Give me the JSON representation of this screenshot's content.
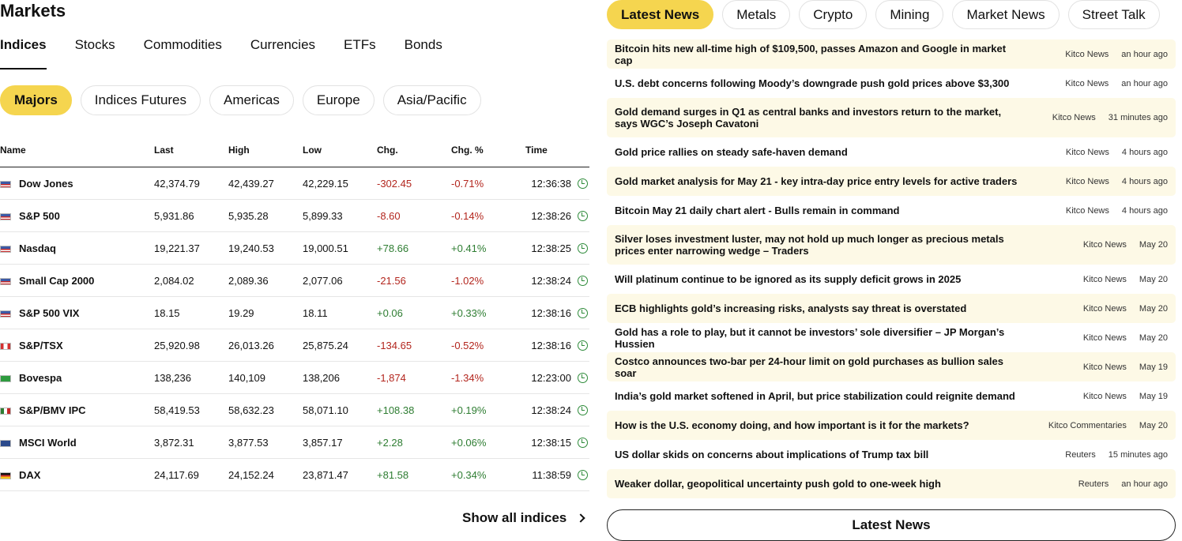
{
  "markets": {
    "title": "Markets",
    "tabs": [
      "Indices",
      "Stocks",
      "Commodities",
      "Currencies",
      "ETFs",
      "Bonds"
    ],
    "subtabs": [
      "Majors",
      "Indices Futures",
      "Americas",
      "Europe",
      "Asia/Pacific"
    ],
    "columns": [
      "Name",
      "Last",
      "High",
      "Low",
      "Chg.",
      "Chg. %",
      "Time"
    ],
    "rows": [
      {
        "flag": "flag-us",
        "name": "Dow Jones",
        "last": "42,374.79",
        "high": "42,439.27",
        "low": "42,229.15",
        "chg": "-302.45",
        "pct": "-0.71%",
        "time": "12:36:38",
        "dir": "neg"
      },
      {
        "flag": "flag-us",
        "name": "S&P 500",
        "last": "5,931.86",
        "high": "5,935.28",
        "low": "5,899.33",
        "chg": "-8.60",
        "pct": "-0.14%",
        "time": "12:38:26",
        "dir": "neg"
      },
      {
        "flag": "flag-us",
        "name": "Nasdaq",
        "last": "19,221.37",
        "high": "19,240.53",
        "low": "19,000.51",
        "chg": "+78.66",
        "pct": "+0.41%",
        "time": "12:38:25",
        "dir": "pos"
      },
      {
        "flag": "flag-us",
        "name": "Small Cap 2000",
        "last": "2,084.02",
        "high": "2,089.36",
        "low": "2,077.06",
        "chg": "-21.56",
        "pct": "-1.02%",
        "time": "12:38:24",
        "dir": "neg"
      },
      {
        "flag": "flag-us",
        "name": "S&P 500 VIX",
        "last": "18.15",
        "high": "19.29",
        "low": "18.11",
        "chg": "+0.06",
        "pct": "+0.33%",
        "time": "12:38:16",
        "dir": "pos"
      },
      {
        "flag": "flag-ca",
        "name": "S&P/TSX",
        "last": "25,920.98",
        "high": "26,013.26",
        "low": "25,875.24",
        "chg": "-134.65",
        "pct": "-0.52%",
        "time": "12:38:16",
        "dir": "neg"
      },
      {
        "flag": "flag-br",
        "name": "Bovespa",
        "last": "138,236",
        "high": "140,109",
        "low": "138,206",
        "chg": "-1,874",
        "pct": "-1.34%",
        "time": "12:23:00",
        "dir": "neg"
      },
      {
        "flag": "flag-mx",
        "name": "S&P/BMV IPC",
        "last": "58,419.53",
        "high": "58,632.23",
        "low": "58,071.10",
        "chg": "+108.38",
        "pct": "+0.19%",
        "time": "12:38:24",
        "dir": "pos"
      },
      {
        "flag": "flag-msci",
        "name": "MSCI World",
        "last": "3,872.31",
        "high": "3,877.53",
        "low": "3,857.17",
        "chg": "+2.28",
        "pct": "+0.06%",
        "time": "12:38:15",
        "dir": "pos"
      },
      {
        "flag": "flag-de",
        "name": "DAX",
        "last": "24,117.69",
        "high": "24,152.24",
        "low": "23,871.47",
        "chg": "+81.58",
        "pct": "+0.34%",
        "time": "11:38:59",
        "dir": "pos"
      }
    ],
    "show_all": "Show all indices"
  },
  "news": {
    "tabs": [
      "Latest News",
      "Metals",
      "Crypto",
      "Mining",
      "Market News",
      "Street Talk"
    ],
    "items": [
      {
        "title": "Bitcoin hits new all-time high of $109,500, passes Amazon and Google in market cap",
        "source": "Kitco News",
        "time": "an hour ago"
      },
      {
        "title": "U.S. debt concerns following Moody’s downgrade push gold prices above $3,300",
        "source": "Kitco News",
        "time": "an hour ago"
      },
      {
        "title": "Gold demand surges in Q1 as central banks and investors return to the market, says WGC’s Joseph Cavatoni",
        "source": "Kitco News",
        "time": "31 minutes ago",
        "tall": true
      },
      {
        "title": "Gold price rallies on steady safe-haven demand",
        "source": "Kitco News",
        "time": "4 hours ago"
      },
      {
        "title": "Gold market analysis for May 21 - key intra-day price entry levels for active traders",
        "source": "Kitco News",
        "time": "4 hours ago"
      },
      {
        "title": "Bitcoin May 21 daily chart alert - Bulls remain in command",
        "source": "Kitco News",
        "time": "4 hours ago"
      },
      {
        "title": "Silver loses investment luster, may not hold up much longer as precious metals prices enter narrowing wedge – Traders",
        "source": "Kitco News",
        "time": "May 20",
        "tall": true
      },
      {
        "title": "Will platinum continue to be ignored as its supply deficit grows in 2025",
        "source": "Kitco News",
        "time": "May 20"
      },
      {
        "title": "ECB highlights gold’s increasing risks, analysts say threat is overstated",
        "source": "Kitco News",
        "time": "May 20"
      },
      {
        "title": "Gold has a role to play, but it cannot be investors’ sole diversifier – JP Morgan’s Hussien",
        "source": "Kitco News",
        "time": "May 20"
      },
      {
        "title": "Costco announces two-bar per 24-hour limit on gold purchases as bullion sales soar",
        "source": "Kitco News",
        "time": "May 19"
      },
      {
        "title": "India’s gold market softened in April, but price stabilization could reignite demand",
        "source": "Kitco News",
        "time": "May 19"
      },
      {
        "title": "How is the U.S. economy doing, and how important is it for the markets?",
        "source": "Kitco Commentaries",
        "time": "May 20"
      },
      {
        "title": "US dollar skids on concerns about implications of Trump tax bill",
        "source": "Reuters",
        "time": "15 minutes ago"
      },
      {
        "title": "Weaker dollar, geopolitical uncertainty push gold to one-week high",
        "source": "Reuters",
        "time": "an hour ago"
      }
    ],
    "button": "Latest News"
  }
}
